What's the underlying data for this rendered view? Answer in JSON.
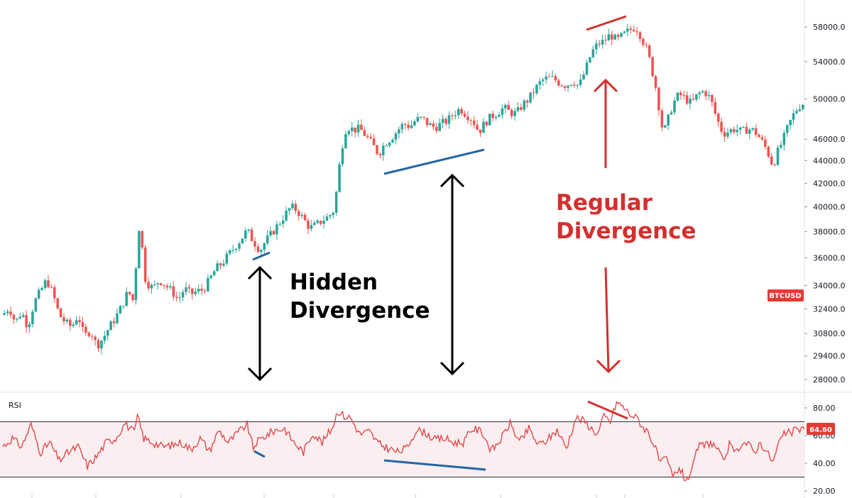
{
  "chart_data": [
    {
      "type": "candlestick",
      "symbol": "BTCUSD",
      "y_ticks": [
        "58000.0",
        "54000.0",
        "50000.0",
        "46000.0",
        "44000.0",
        "42000.0",
        "40000.0",
        "38000.0",
        "36000.0",
        "34000.0",
        "32400.0",
        "30800.0",
        "29400.0",
        "28000.0"
      ],
      "y_scale": "log",
      "ylim": [
        27000,
        60000
      ],
      "ohlc_close_path": [
        [
          0,
          32000
        ],
        [
          4,
          32500
        ],
        [
          8,
          31500
        ],
        [
          12,
          32200
        ],
        [
          16,
          31200
        ],
        [
          20,
          32800
        ],
        [
          24,
          33600
        ],
        [
          28,
          34400
        ],
        [
          32,
          33400
        ],
        [
          36,
          32000
        ],
        [
          40,
          31500
        ],
        [
          44,
          31200
        ],
        [
          48,
          32000
        ],
        [
          52,
          30600
        ],
        [
          56,
          31000
        ],
        [
          60,
          30000
        ],
        [
          64,
          30500
        ],
        [
          68,
          31200
        ],
        [
          72,
          31800
        ],
        [
          76,
          32600
        ],
        [
          80,
          33600
        ],
        [
          84,
          32800
        ],
        [
          86,
          38000
        ],
        [
          88,
          38600
        ],
        [
          90,
          34800
        ],
        [
          92,
          34200
        ],
        [
          96,
          33800
        ],
        [
          100,
          34400
        ],
        [
          104,
          34000
        ],
        [
          108,
          33600
        ],
        [
          112,
          33000
        ],
        [
          116,
          33800
        ],
        [
          120,
          33400
        ],
        [
          124,
          33600
        ],
        [
          128,
          33700
        ],
        [
          132,
          34400
        ],
        [
          136,
          35200
        ],
        [
          140,
          35600
        ],
        [
          144,
          36200
        ],
        [
          148,
          36800
        ],
        [
          152,
          37400
        ],
        [
          156,
          38100
        ],
        [
          158,
          37700
        ],
        [
          160,
          37200
        ],
        [
          162,
          37000
        ],
        [
          164,
          36500
        ],
        [
          168,
          37300
        ],
        [
          172,
          37900
        ],
        [
          176,
          38600
        ],
        [
          180,
          39300
        ],
        [
          184,
          40000
        ],
        [
          188,
          39700
        ],
        [
          192,
          39000
        ],
        [
          196,
          38300
        ],
        [
          200,
          38500
        ],
        [
          204,
          38900
        ],
        [
          208,
          39200
        ],
        [
          212,
          39800
        ],
        [
          214,
          42600
        ],
        [
          216,
          44500
        ],
        [
          218,
          46600
        ],
        [
          220,
          47200
        ],
        [
          224,
          46900
        ],
        [
          228,
          47000
        ],
        [
          232,
          46300
        ],
        [
          236,
          45500
        ],
        [
          240,
          44600
        ],
        [
          244,
          45600
        ],
        [
          248,
          46100
        ],
        [
          252,
          46800
        ],
        [
          256,
          47500
        ],
        [
          260,
          47200
        ],
        [
          264,
          47900
        ],
        [
          268,
          48000
        ],
        [
          272,
          47400
        ],
        [
          276,
          47100
        ],
        [
          280,
          47500
        ],
        [
          284,
          47800
        ],
        [
          288,
          48500
        ],
        [
          292,
          49000
        ],
        [
          296,
          48400
        ],
        [
          300,
          47900
        ],
        [
          304,
          46700
        ],
        [
          308,
          47600
        ],
        [
          312,
          48200
        ],
        [
          316,
          48600
        ],
        [
          320,
          49100
        ],
        [
          324,
          48600
        ],
        [
          328,
          48500
        ],
        [
          332,
          49400
        ],
        [
          336,
          50000
        ],
        [
          340,
          51000
        ],
        [
          344,
          51900
        ],
        [
          348,
          52200
        ],
        [
          352,
          52100
        ],
        [
          356,
          51600
        ],
        [
          360,
          51400
        ],
        [
          364,
          51900
        ],
        [
          368,
          51300
        ],
        [
          372,
          53000
        ],
        [
          376,
          55000
        ],
        [
          380,
          56000
        ],
        [
          384,
          56300
        ],
        [
          388,
          57100
        ],
        [
          392,
          56400
        ],
        [
          396,
          57000
        ],
        [
          400,
          57600
        ],
        [
          404,
          58000
        ],
        [
          406,
          57500
        ],
        [
          408,
          56700
        ],
        [
          412,
          55000
        ],
        [
          416,
          52000
        ],
        [
          418,
          50500
        ],
        [
          420,
          48000
        ],
        [
          422,
          46500
        ],
        [
          424,
          47500
        ],
        [
          428,
          49500
        ],
        [
          432,
          50500
        ],
        [
          436,
          50000
        ],
        [
          440,
          49500
        ],
        [
          444,
          50500
        ],
        [
          448,
          50800
        ],
        [
          452,
          50000
        ],
        [
          456,
          48000
        ],
        [
          460,
          46500
        ],
        [
          464,
          46800
        ],
        [
          468,
          47000
        ],
        [
          472,
          46700
        ],
        [
          476,
          47000
        ],
        [
          480,
          46800
        ],
        [
          484,
          46000
        ],
        [
          488,
          45000
        ],
        [
          490,
          44200
        ],
        [
          492,
          43500
        ],
        [
          494,
          44500
        ],
        [
          498,
          45800
        ],
        [
          502,
          47400
        ],
        [
          506,
          48700
        ],
        [
          510,
          49500
        ]
      ],
      "annotations": {
        "hidden": "Hidden\nDivergence",
        "regular": "Regular\nDivergence"
      },
      "colors": {
        "bull": "#26a69a",
        "bear": "#ef5350",
        "hidden_line": "#2166a4",
        "regular": "#d32f2f",
        "arrow_hidden": "#000000",
        "rsi_line": "#e04a4a",
        "band_fill": "#fbeef0"
      }
    },
    {
      "type": "line",
      "name": "RSI",
      "y_ticks": [
        "80.00",
        "60.00",
        "40.00",
        "20.00"
      ],
      "ylim": [
        18,
        88
      ],
      "bands": [
        70,
        30
      ],
      "current_value": "64.60",
      "x": [
        0,
        6,
        12,
        18,
        24,
        30,
        36,
        42,
        48,
        54,
        60,
        66,
        72,
        78,
        84,
        86,
        90,
        96,
        102,
        108,
        114,
        120,
        126,
        132,
        138,
        144,
        150,
        156,
        158,
        160,
        162,
        168,
        174,
        180,
        186,
        192,
        198,
        204,
        210,
        214,
        218,
        222,
        228,
        234,
        240,
        246,
        252,
        258,
        264,
        270,
        276,
        282,
        288,
        294,
        300,
        306,
        312,
        318,
        324,
        330,
        336,
        342,
        348,
        354,
        360,
        366,
        372,
        376,
        380,
        384,
        388,
        392,
        396,
        400,
        404,
        406,
        408,
        412,
        416,
        420,
        424,
        428,
        432,
        436,
        440,
        444,
        448,
        452,
        456,
        460,
        464,
        468,
        472,
        476,
        480,
        484,
        488,
        492,
        496,
        500,
        504,
        508,
        512
      ],
      "values": [
        52,
        58,
        52,
        68,
        48,
        55,
        42,
        48,
        52,
        38,
        45,
        55,
        58,
        69,
        62,
        74,
        58,
        55,
        52,
        53,
        55,
        50,
        58,
        49,
        64,
        55,
        62,
        68,
        59,
        51,
        55,
        60,
        64,
        65,
        55,
        48,
        62,
        55,
        65,
        78,
        74,
        73,
        61,
        63,
        54,
        51,
        48,
        51,
        64,
        62,
        57,
        58,
        55,
        55,
        65,
        63,
        49,
        57,
        69,
        55,
        65,
        53,
        57,
        64,
        51,
        73,
        70,
        65,
        61,
        74,
        70,
        84,
        81,
        76,
        73,
        72,
        67,
        63,
        53,
        40,
        43,
        30,
        37,
        28,
        33,
        52,
        53,
        55,
        51,
        41,
        53,
        47,
        55,
        54,
        48,
        55,
        48,
        41,
        56,
        62,
        62,
        65,
        64.6
      ],
      "colors": {
        "line": "#e04a4a"
      }
    }
  ]
}
